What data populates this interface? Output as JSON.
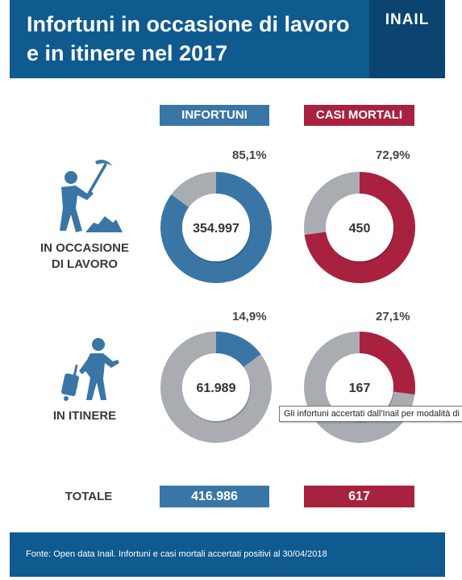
{
  "header": {
    "title_line1": "Infortuni in occasione di lavoro",
    "title_line2": "e in itinere nel 2017",
    "logo": "INAIL"
  },
  "colors": {
    "blue": "#3a76a5",
    "red": "#a8223f",
    "grey": "#a9adb2",
    "header_blue": "#0f5a8f"
  },
  "columns": {
    "infortuni": "INFORTUNI",
    "casi_mortali": "CASI MORTALI"
  },
  "rows": {
    "lavoro_line1": "IN OCCASIONE",
    "lavoro_line2": "DI LAVORO",
    "itinere": "IN ITINERE",
    "totale": "TOTALE"
  },
  "icons": {
    "worker": "worker-with-pickaxe-icon",
    "traveller": "walking-person-with-suitcase-icon"
  },
  "chart_data": [
    {
      "type": "pie",
      "id": "infortuni-lavoro",
      "center_label": "354.997",
      "percent_label": "85,1%",
      "share": 85.1,
      "color": "#3a76a5"
    },
    {
      "type": "pie",
      "id": "mortali-lavoro",
      "center_label": "450",
      "percent_label": "72,9%",
      "share": 72.9,
      "color": "#a8223f"
    },
    {
      "type": "pie",
      "id": "infortuni-itinere",
      "center_label": "61.989",
      "percent_label": "14,9%",
      "share": 14.9,
      "color": "#3a76a5"
    },
    {
      "type": "pie",
      "id": "mortali-itinere",
      "center_label": "167",
      "percent_label": "27,1%",
      "share": 27.1,
      "color": "#a8223f"
    }
  ],
  "totals": {
    "infortuni": "416.986",
    "casi_mortali": "617"
  },
  "footer": {
    "source": "Fonte: Open data Inail. Infortuni e casi mortali accertati positivi al 30/04/2018"
  },
  "tooltip": {
    "text": "Gli infortuni accertati dall'Inail per modalità di accadimento"
  }
}
